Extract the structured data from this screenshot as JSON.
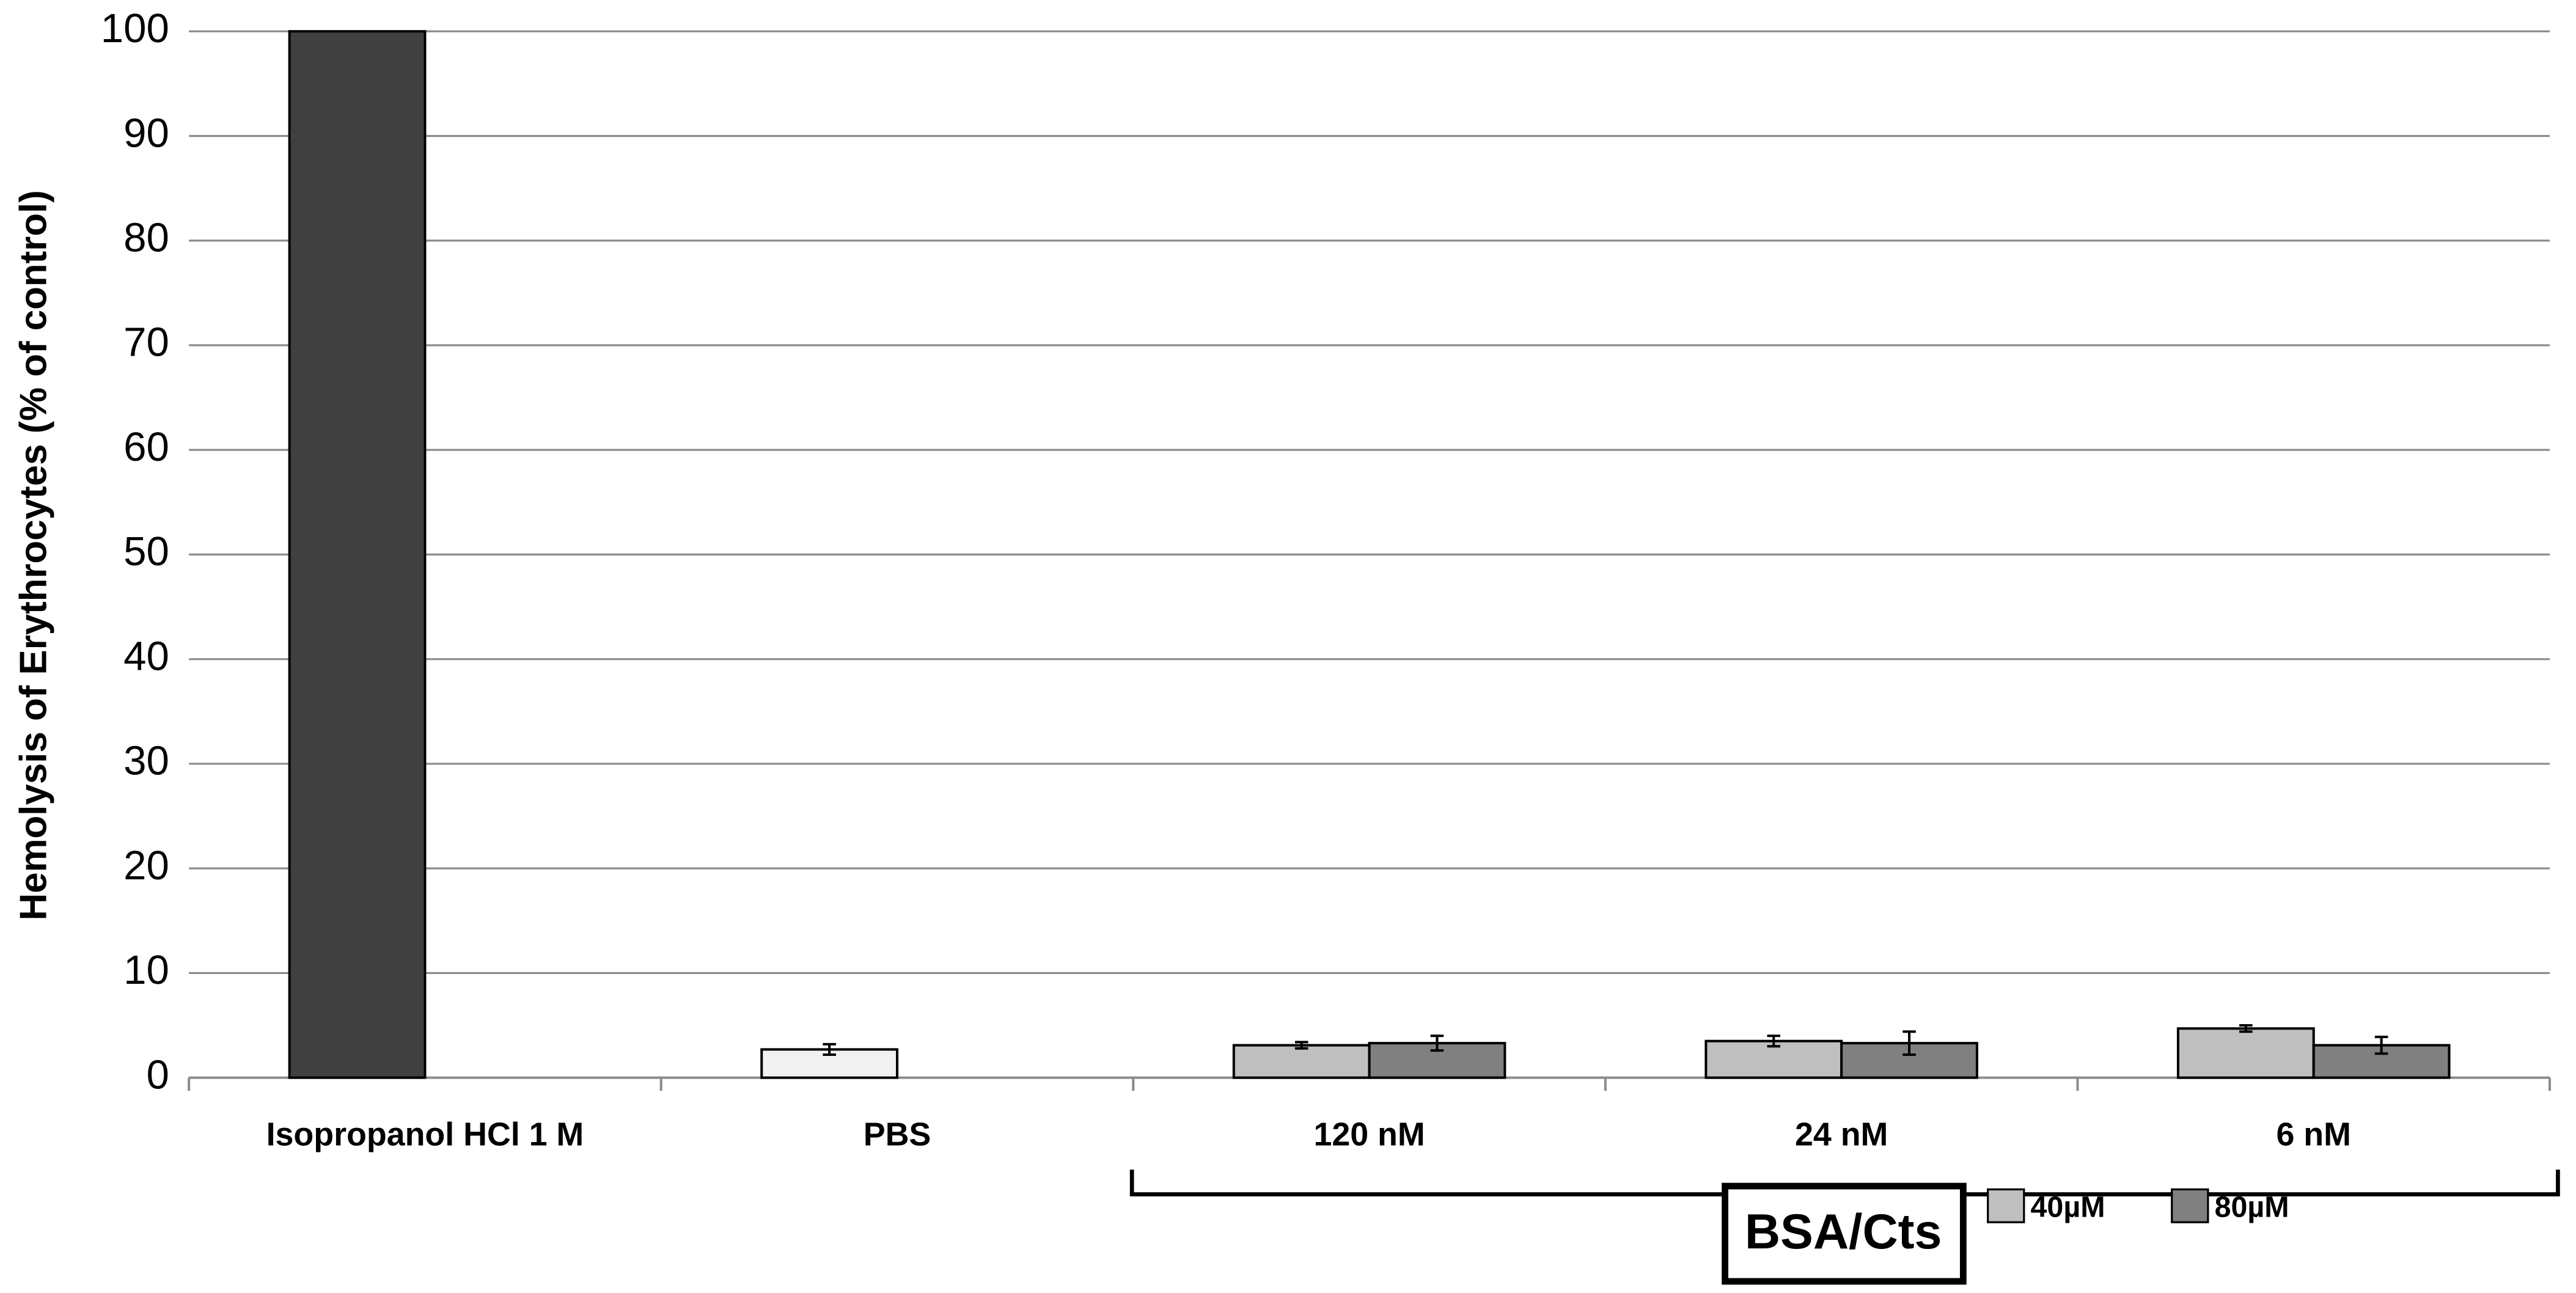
{
  "chart_data": {
    "type": "bar",
    "y_label": "Hemolysis of Erythrocytes (% of control)",
    "categories": [
      "Isopropanol HCl 1 M",
      "PBS",
      "120 nM",
      "24 nM",
      "6 nM"
    ],
    "series": [
      {
        "color": "#404040",
        "values": [
          100,
          null,
          null,
          null,
          null
        ]
      },
      {
        "color": "#f2f2f2",
        "values": [
          null,
          2.7,
          null,
          null,
          null
        ],
        "errors": [
          null,
          0.5,
          null,
          null,
          null
        ]
      },
      {
        "name": "40µM",
        "color": "#bfbfbf",
        "values": [
          null,
          null,
          3.1,
          3.5,
          4.7
        ],
        "errors": [
          null,
          null,
          0.3,
          0.5,
          0.3
        ]
      },
      {
        "name": "80µM",
        "color": "#808080",
        "values": [
          null,
          null,
          3.3,
          3.3,
          3.1
        ],
        "errors": [
          null,
          null,
          0.7,
          1.1,
          0.8
        ]
      }
    ],
    "annotation": "BSA/Cts",
    "ylim": [
      0,
      100
    ],
    "yticks": [
      0,
      10,
      20,
      30,
      40,
      50,
      60,
      70,
      80,
      90,
      100
    ],
    "grid": true
  }
}
